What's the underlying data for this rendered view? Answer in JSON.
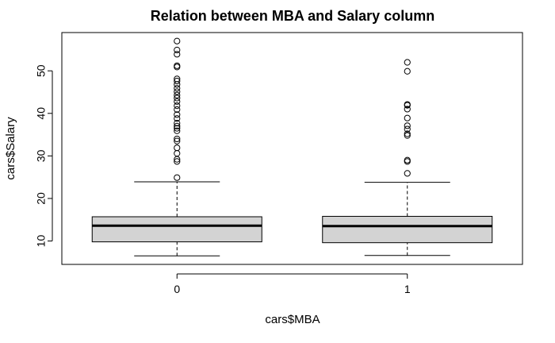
{
  "chart_data": {
    "type": "boxplot",
    "title": "Relation between MBA and Salary column",
    "xlabel": "cars$MBA",
    "ylabel": "cars$Salary",
    "categories": [
      "0",
      "1"
    ],
    "y_ticks": [
      10,
      20,
      30,
      40,
      50
    ],
    "ylim": [
      4.5,
      59
    ],
    "grid": false,
    "box_fill": "#d3d3d3",
    "boxes": [
      {
        "category": "0",
        "whisker_low": 6.5,
        "q1": 9.8,
        "median": 13.6,
        "q3": 15.7,
        "whisker_high": 23.9,
        "outliers": [
          24.9,
          28.7,
          29.2,
          30.6,
          31.9,
          33.5,
          34.0,
          35.9,
          36.5,
          37.0,
          37.7,
          38.8,
          39.7,
          40.9,
          41.8,
          42.8,
          43.6,
          44.3,
          45.1,
          45.9,
          46.8,
          47.6,
          48.1,
          50.9,
          51.2,
          53.9,
          54.9,
          57.0
        ]
      },
      {
        "category": "1",
        "whisker_low": 6.6,
        "q1": 9.6,
        "median": 13.5,
        "q3": 15.8,
        "whisker_high": 23.8,
        "outliers": [
          25.9,
          28.7,
          29.0,
          34.8,
          35.2,
          36.3,
          37.1,
          38.9,
          41.0,
          41.9,
          42.1,
          49.9,
          52.0
        ]
      }
    ]
  }
}
